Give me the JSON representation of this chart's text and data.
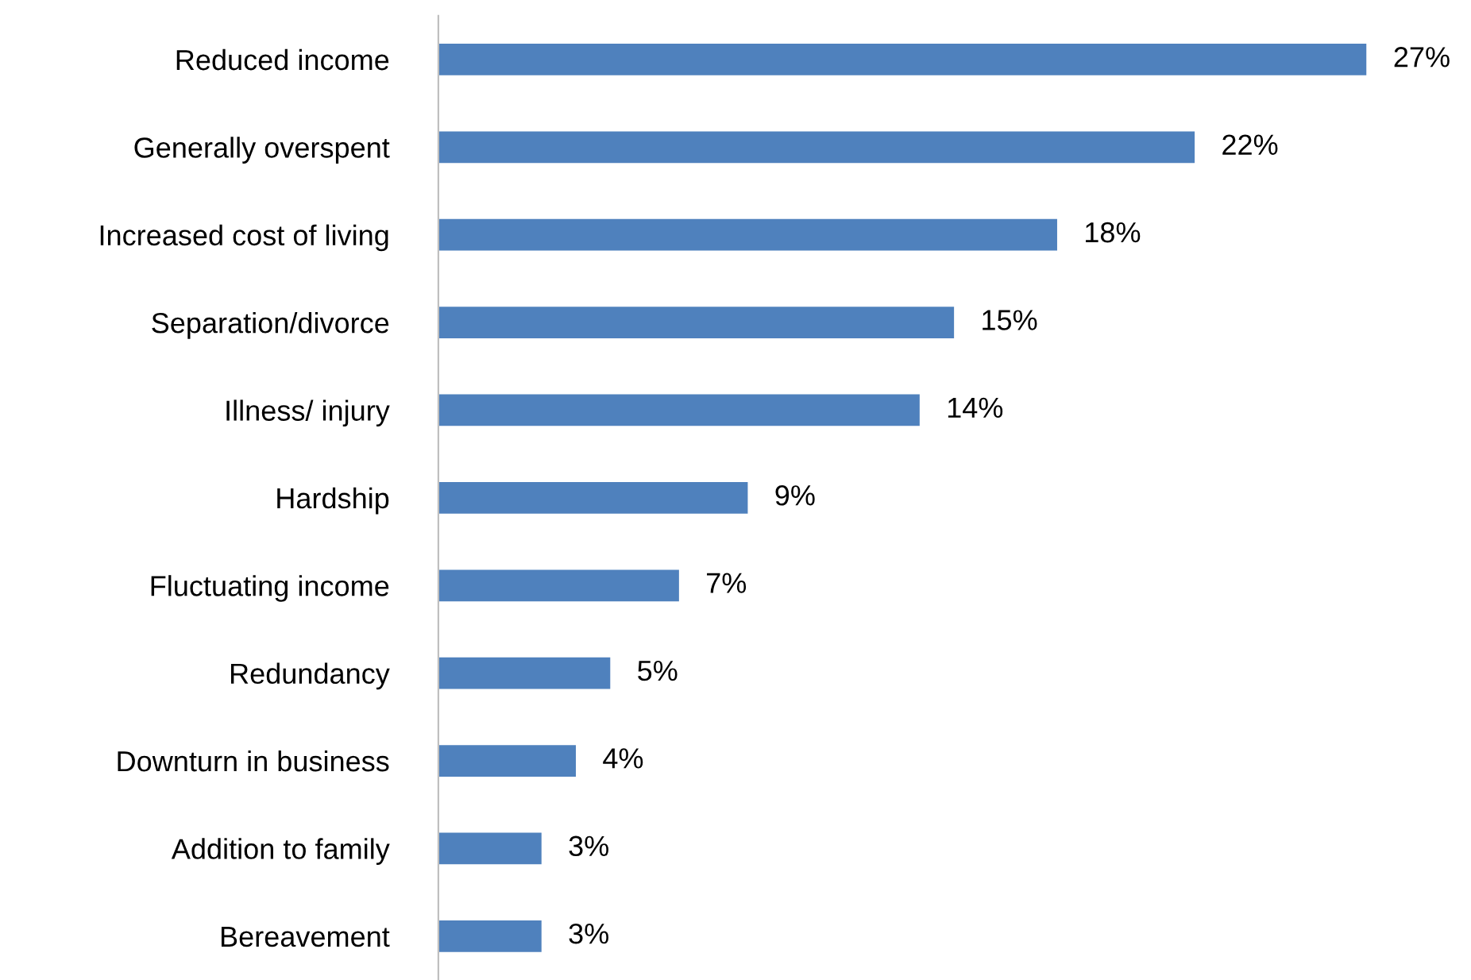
{
  "chart_data": {
    "type": "bar",
    "orientation": "horizontal",
    "categories": [
      "Reduced income",
      "Generally overspent",
      "Increased cost of living",
      "Separation/divorce",
      "Illness/ injury",
      "Hardship",
      "Fluctuating income",
      "Redundancy",
      "Downturn in business",
      "Addition to family",
      "Bereavement"
    ],
    "values": [
      27,
      22,
      18,
      15,
      14,
      9,
      7,
      5,
      4,
      3,
      3
    ],
    "value_labels": [
      "27%",
      "22%",
      "18%",
      "15%",
      "14%",
      "9%",
      "7%",
      "5%",
      "4%",
      "3%",
      "3%"
    ],
    "color": "#4f81bd",
    "grid": false,
    "legend": false
  }
}
